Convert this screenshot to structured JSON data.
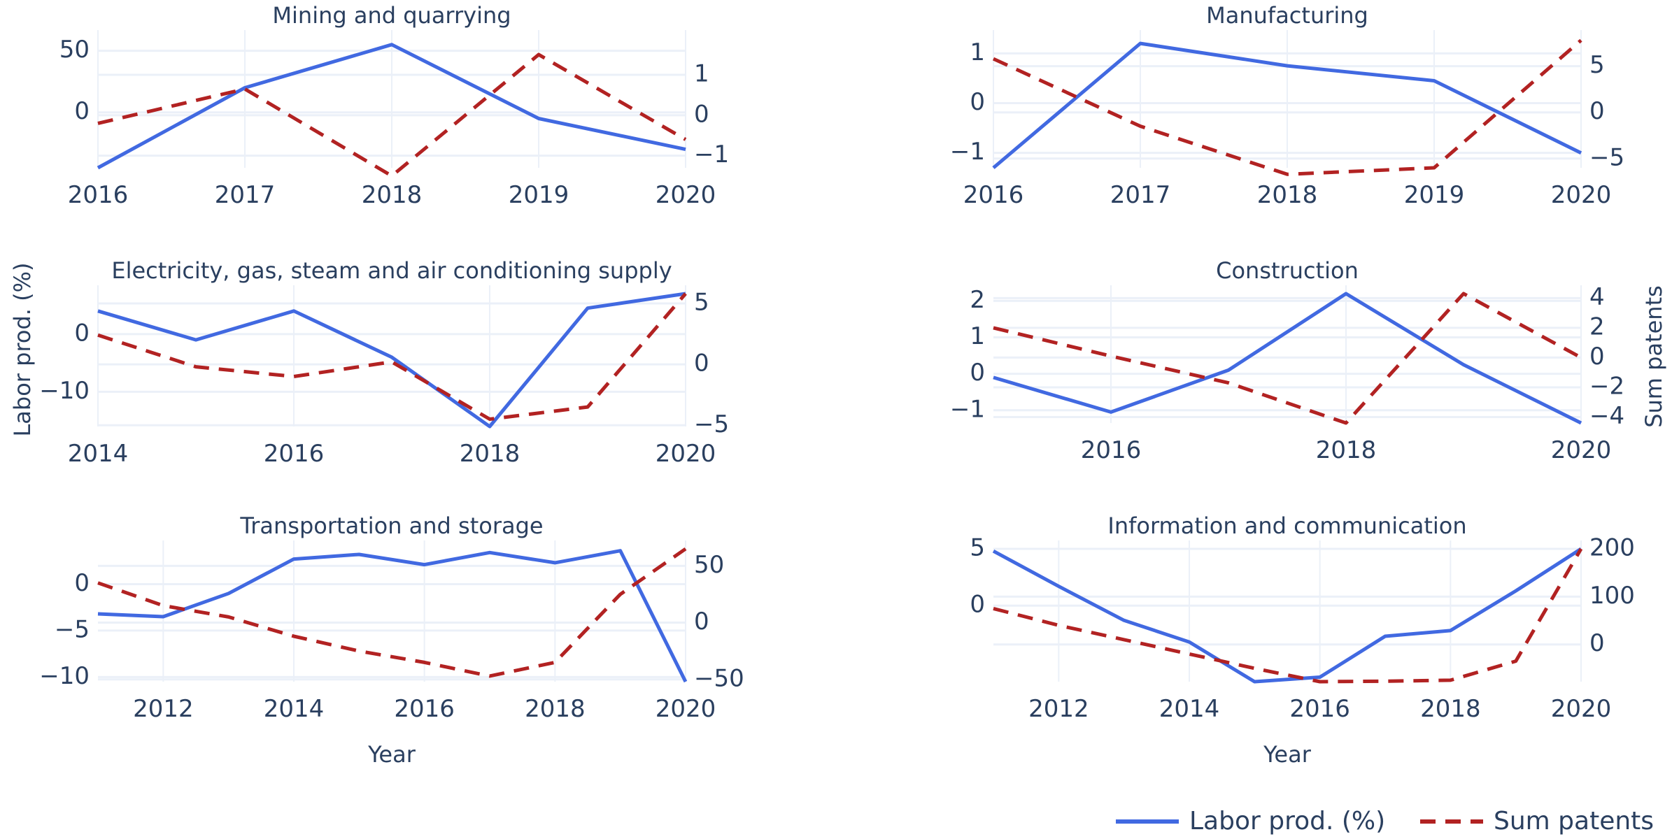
{
  "figure": {
    "y_axis_left_title": "Labor prod. (%)",
    "y_axis_right_title": "Sum patents",
    "x_axis_title": "Year",
    "legend": [
      {
        "label": "Labor prod. (%)",
        "color": "#4169e1",
        "dash": "solid"
      },
      {
        "label": "Sum patents",
        "color": "#b22222",
        "dash": "dash"
      }
    ],
    "legend_position": "bottom-right"
  },
  "chart_data": [
    {
      "type": "line",
      "title": "Mining and quarrying",
      "x": [
        2016,
        2017,
        2018,
        2019,
        2020
      ],
      "xlim": [
        2016,
        2020
      ],
      "xticks": [
        2016,
        2017,
        2018,
        2019,
        2020
      ],
      "ylim": [
        -45,
        60
      ],
      "yticks": [
        0,
        50
      ],
      "y2lim": [
        -1.3,
        1.9
      ],
      "y2ticks": [
        -1,
        0,
        1
      ],
      "series": [
        {
          "name": "Labor prod. (%)",
          "axis": "left",
          "x": [
            2016,
            2017,
            2018,
            2019,
            2020
          ],
          "values": [
            -45,
            20,
            55,
            -5,
            -30
          ]
        },
        {
          "name": "Sum patents",
          "axis": "right",
          "x": [
            2016,
            2017,
            2018,
            2019,
            2020
          ],
          "values": [
            -0.2,
            0.65,
            -1.5,
            1.5,
            -0.6
          ]
        }
      ]
    },
    {
      "type": "line",
      "title": "Manufacturing",
      "x": [
        2016,
        2017,
        2018,
        2019,
        2020
      ],
      "xlim": [
        2016,
        2020
      ],
      "xticks": [
        2016,
        2017,
        2018,
        2019,
        2020
      ],
      "ylim": [
        -1.3,
        1.3
      ],
      "yticks": [
        -1,
        0,
        1
      ],
      "y2lim": [
        -6,
        8
      ],
      "y2ticks": [
        -5,
        0,
        5
      ],
      "series": [
        {
          "name": "Labor prod. (%)",
          "axis": "left",
          "x": [
            2016,
            2017,
            2018,
            2019,
            2020
          ],
          "values": [
            -1.3,
            1.2,
            0.75,
            0.45,
            -1.0
          ]
        },
        {
          "name": "Sum patents",
          "axis": "right",
          "x": [
            2016,
            2017,
            2018,
            2019,
            2020
          ],
          "values": [
            5.8,
            -1.5,
            -6.7,
            -6.0,
            7.8
          ]
        }
      ]
    },
    {
      "type": "line",
      "title": "Electricity, gas, steam and air conditioning supply",
      "x": [
        2014,
        2015,
        2016,
        2017,
        2018,
        2019,
        2020
      ],
      "xlim": [
        2014,
        2020
      ],
      "xticks": [
        2014,
        2016,
        2018,
        2020
      ],
      "ylim": [
        -16,
        7
      ],
      "yticks": [
        -10,
        0
      ],
      "y2lim": [
        -5.1,
        5.8
      ],
      "y2ticks": [
        -5,
        0,
        5
      ],
      "series": [
        {
          "name": "Labor prod. (%)",
          "axis": "left",
          "x": [
            2014,
            2015,
            2016,
            2017,
            2018,
            2019,
            2020
          ],
          "values": [
            4,
            -1,
            4,
            -4,
            -16,
            4.5,
            7
          ]
        },
        {
          "name": "Sum patents",
          "axis": "right",
          "x": [
            2014,
            2015,
            2016,
            2017,
            2018,
            2019,
            2020
          ],
          "values": [
            2.4,
            -0.2,
            -1.0,
            0.2,
            -4.5,
            -3.5,
            5.8
          ]
        }
      ]
    },
    {
      "type": "line",
      "title": "Construction",
      "x": [
        2015,
        2016,
        2017,
        2018,
        2019,
        2020
      ],
      "xlim": [
        2015,
        2020
      ],
      "xticks": [
        2016,
        2018,
        2020
      ],
      "ylim": [
        -1.35,
        2.2
      ],
      "yticks": [
        -1,
        0,
        1,
        2
      ],
      "y2lim": [
        -4.4,
        4.3
      ],
      "y2ticks": [
        -4,
        -2,
        0,
        2,
        4
      ],
      "series": [
        {
          "name": "Labor prod. (%)",
          "axis": "left",
          "x": [
            2015,
            2016,
            2017,
            2018,
            2019,
            2020
          ],
          "values": [
            -0.1,
            -1.05,
            0.1,
            2.2,
            0.25,
            -1.35
          ]
        },
        {
          "name": "Sum patents",
          "axis": "right",
          "x": [
            2015,
            2016,
            2017,
            2018,
            2019,
            2020
          ],
          "values": [
            2.0,
            0.1,
            -1.7,
            -4.4,
            4.3,
            0
          ]
        }
      ]
    },
    {
      "type": "line",
      "title": "Transportation and storage",
      "x": [
        2011,
        2012,
        2013,
        2014,
        2015,
        2016,
        2017,
        2018,
        2019,
        2020
      ],
      "xlim": [
        2011,
        2020
      ],
      "xticks": [
        2012,
        2014,
        2016,
        2018,
        2020
      ],
      "ylim": [
        -10.5,
        3.8
      ],
      "yticks": [
        -10,
        -5,
        0
      ],
      "y2lim": [
        -52,
        65
      ],
      "y2ticks": [
        -50,
        0,
        50
      ],
      "series": [
        {
          "name": "Labor prod. (%)",
          "axis": "left",
          "x": [
            2011,
            2012,
            2013,
            2014,
            2015,
            2016,
            2017,
            2018,
            2019,
            2020
          ],
          "values": [
            -3.2,
            -3.5,
            -1.0,
            2.7,
            3.2,
            2.1,
            3.4,
            2.3,
            3.6,
            -10.5
          ]
        },
        {
          "name": "Sum patents",
          "axis": "right",
          "x": [
            2011,
            2012,
            2013,
            2014,
            2015,
            2016,
            2017,
            2018,
            2019,
            2020
          ],
          "values": [
            35,
            15,
            5,
            -12,
            -25,
            -35,
            -47,
            -35,
            25,
            65
          ]
        }
      ]
    },
    {
      "type": "line",
      "title": "Information and communication",
      "x": [
        2011,
        2012,
        2013,
        2014,
        2015,
        2016,
        2017,
        2018,
        2019,
        2020
      ],
      "xlim": [
        2011,
        2020
      ],
      "xticks": [
        2012,
        2014,
        2016,
        2018,
        2020
      ],
      "ylim": [
        -6.7,
        5
      ],
      "yticks": [
        0,
        5
      ],
      "y2lim": [
        -78,
        200
      ],
      "y2ticks": [
        0,
        100,
        200
      ],
      "series": [
        {
          "name": "Labor prod. (%)",
          "axis": "left",
          "x": [
            2011,
            2012,
            2013,
            2014,
            2015,
            2016,
            2017,
            2018,
            2019,
            2020
          ],
          "values": [
            4.8,
            1.7,
            -1.3,
            -3.2,
            -6.7,
            -6.3,
            -2.7,
            -2.2,
            1.3,
            5
          ]
        },
        {
          "name": "Sum patents",
          "axis": "right",
          "x": [
            2011,
            2012,
            2013,
            2014,
            2015,
            2016,
            2017,
            2018,
            2019,
            2020
          ],
          "values": [
            75,
            40,
            10,
            -20,
            -50,
            -78,
            -77,
            -75,
            -35,
            200
          ]
        }
      ]
    }
  ]
}
